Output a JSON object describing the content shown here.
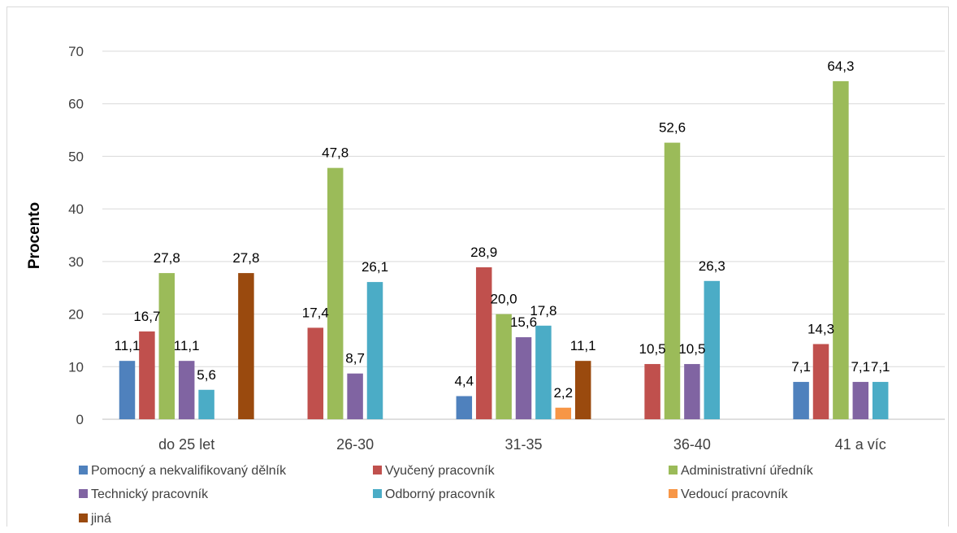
{
  "chart_data": {
    "type": "bar",
    "title": "",
    "xlabel": "",
    "ylabel": "Procento",
    "ylim": [
      0,
      70
    ],
    "yticks": [
      "0",
      "10",
      "20",
      "30",
      "40",
      "50",
      "60",
      "70"
    ],
    "grid": true,
    "legend_position": "bottom",
    "categories": [
      "do 25 let",
      "26-30",
      "31-35",
      "36-40",
      "41 a víc"
    ],
    "series": [
      {
        "name": "Pomocný a nekvalifikovaný dělník",
        "color": "#4f81bd",
        "values": [
          11.1,
          null,
          4.4,
          null,
          7.1
        ],
        "labels": [
          "11,1",
          "",
          "4,4",
          "",
          "7,1"
        ]
      },
      {
        "name": "Vyučený pracovník",
        "color": "#c0504d",
        "values": [
          16.7,
          17.4,
          28.9,
          10.5,
          14.3
        ],
        "labels": [
          "16,7",
          "17,4",
          "28,9",
          "10,5",
          "14,3"
        ]
      },
      {
        "name": "Administrativní úředník",
        "color": "#9bbb59",
        "values": [
          27.8,
          47.8,
          20.0,
          52.6,
          64.3
        ],
        "labels": [
          "27,8",
          "47,8",
          "20,0",
          "52,6",
          "64,3"
        ]
      },
      {
        "name": "Technický pracovník",
        "color": "#8064a2",
        "values": [
          11.1,
          8.7,
          15.6,
          10.5,
          7.1
        ],
        "labels": [
          "11,1",
          "8,7",
          "15,6",
          "10,5",
          "7,1"
        ]
      },
      {
        "name": "Odborný pracovník",
        "color": "#4bacc6",
        "values": [
          5.6,
          26.1,
          17.8,
          26.3,
          7.1
        ],
        "labels": [
          "5,6",
          "26,1",
          "17,8",
          "26,3",
          "7,1"
        ]
      },
      {
        "name": "Vedoucí pracovník",
        "color": "#f79646",
        "values": [
          null,
          null,
          2.2,
          null,
          null
        ],
        "labels": [
          "",
          "",
          "2,2",
          "",
          ""
        ]
      },
      {
        "name": "jiná",
        "color": "#9a4a0e",
        "values": [
          27.8,
          null,
          11.1,
          null,
          null
        ],
        "labels": [
          "27,8",
          "",
          "11,1",
          "",
          ""
        ]
      }
    ]
  }
}
